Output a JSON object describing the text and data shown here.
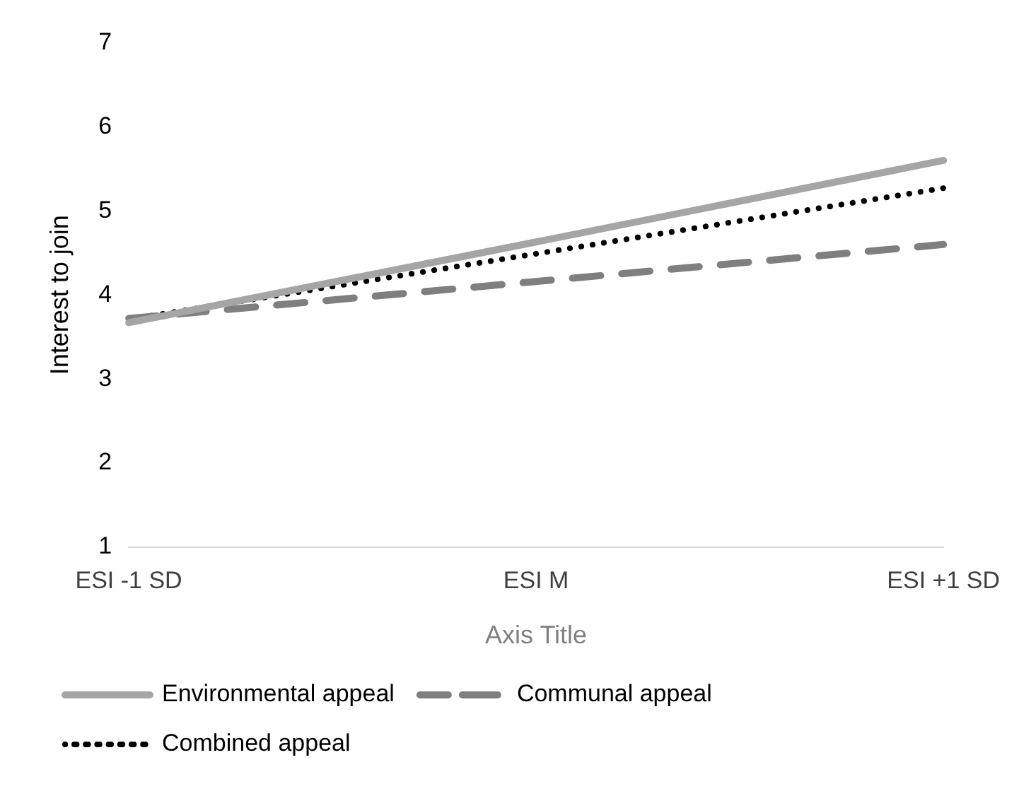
{
  "chart_data": {
    "type": "line",
    "xlabel": "Axis Title",
    "ylabel": "Interest to join",
    "categories": [
      "ESI -1 SD",
      "ESI M",
      "ESI +1 SD"
    ],
    "series": [
      {
        "name": "Environmental appeal",
        "color": "#a5a5a5",
        "line_style": "solid",
        "values": [
          3.67,
          4.63,
          5.6
        ]
      },
      {
        "name": "Communal appeal",
        "color": "#7f7f7f",
        "line_style": "dashed",
        "values": [
          3.72,
          4.16,
          4.6
        ]
      },
      {
        "name": "Combined appeal",
        "color": "#000000",
        "line_style": "dotted",
        "values": [
          3.71,
          4.49,
          5.27
        ]
      }
    ],
    "ylim": [
      1,
      7
    ],
    "yticks": [
      1,
      2,
      3,
      4,
      5,
      6,
      7
    ],
    "grid": false,
    "legend": "bottom",
    "marker": "none"
  }
}
